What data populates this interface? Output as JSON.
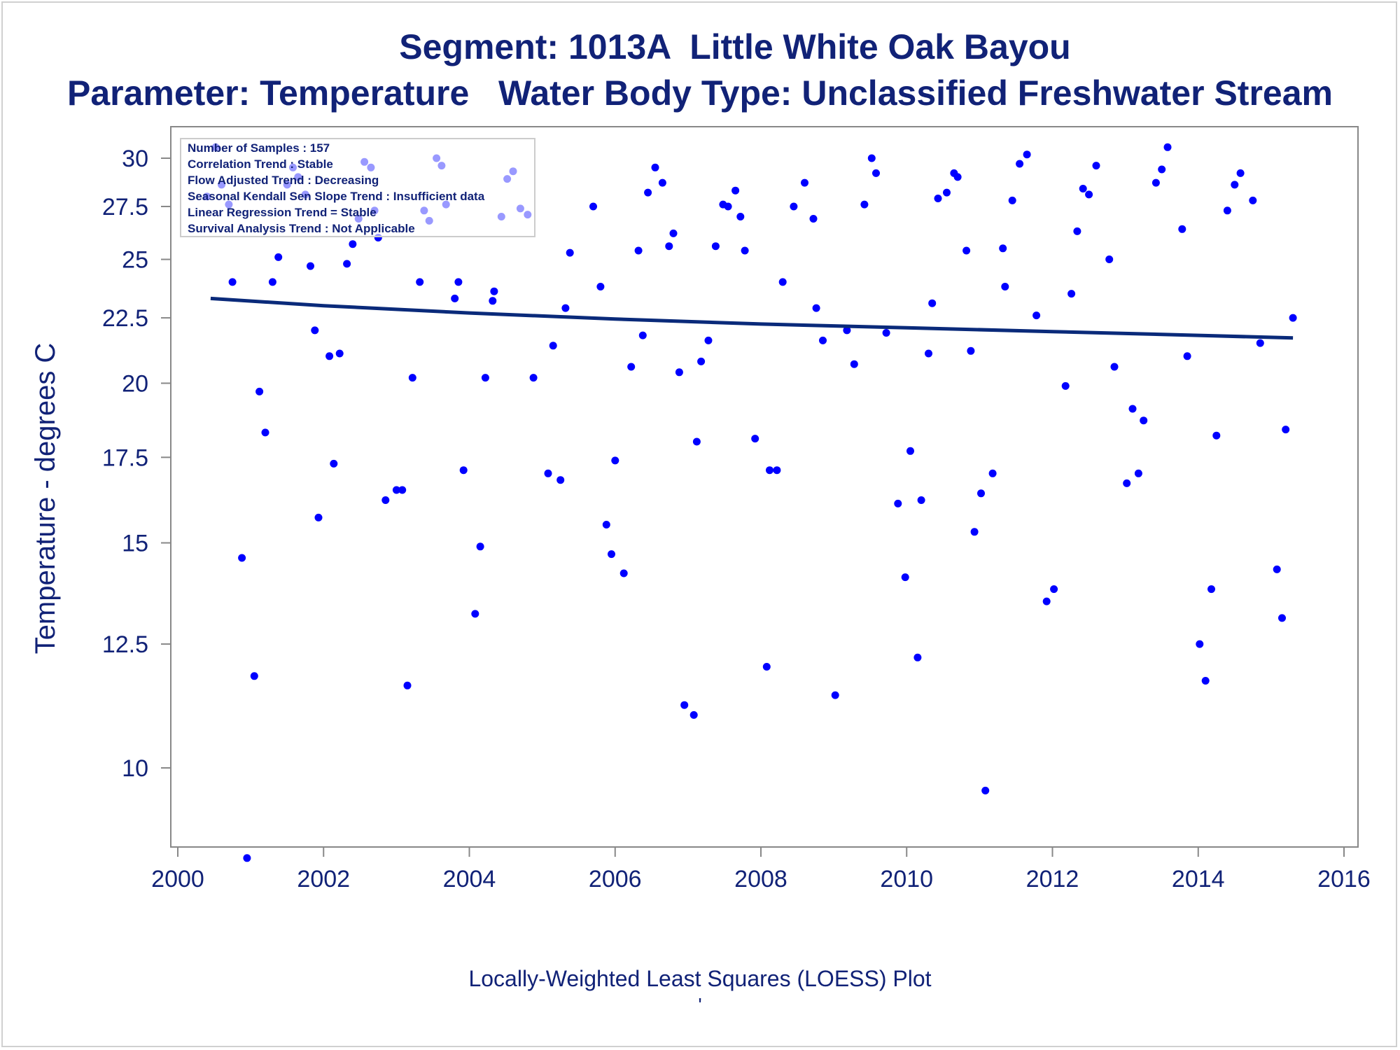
{
  "titles": {
    "line1": "Segment: 1013A  Little White Oak Bayou",
    "line2": "Parameter: Temperature   Water Body Type: Unclassified Freshwater Stream"
  },
  "footer": {
    "line1": "Locally-Weighted Least Squares (LOESS) Plot",
    "line2": "'"
  },
  "colors": {
    "title": "#112277",
    "points": "#0000ff",
    "trend_line": "#0a2a7a",
    "axis": "#888888"
  },
  "chart_data": {
    "type": "scatter",
    "title": "Segment: 1013A  Little White Oak Bayou",
    "subtitle": "Parameter: Temperature   Water Body Type: Unclassified Freshwater Stream",
    "xlabel": "",
    "ylabel": "Temperature - degrees C",
    "xlim": [
      2000,
      2016
    ],
    "ylim": [
      8.5,
      31
    ],
    "y_scale": "log",
    "x_ticks": [
      2000,
      2002,
      2004,
      2006,
      2008,
      2010,
      2012,
      2014,
      2016
    ],
    "y_ticks": [
      10,
      12.5,
      15,
      17.5,
      20,
      22.5,
      25,
      27.5,
      30
    ],
    "y_tick_labels": [
      "10",
      "12.5",
      "15",
      "17.5",
      "20",
      "22.5",
      "25",
      "27.5",
      "30"
    ],
    "grid": false,
    "legend_position": "top-left",
    "annotations": [
      "Number of Samples : 157",
      "Correlation Trend : Stable",
      "Flow Adjusted Trend : Decreasing",
      "Seasonal Kendall Sen Slope Trend : Insufficient data",
      "Linear Regression Trend = Stable",
      "Survival Analysis Trend : Not Applicable"
    ],
    "series": [
      {
        "type": "scatter",
        "points": [
          [
            2000.4,
            28.0
          ],
          [
            2000.52,
            30.6
          ],
          [
            2000.6,
            28.6
          ],
          [
            2000.7,
            27.6
          ],
          [
            2000.75,
            24.0
          ],
          [
            2000.88,
            14.6
          ],
          [
            2000.95,
            8.5
          ],
          [
            2001.05,
            11.8
          ],
          [
            2001.12,
            19.7
          ],
          [
            2001.2,
            18.3
          ],
          [
            2001.3,
            24.0
          ],
          [
            2001.38,
            25.1
          ],
          [
            2001.5,
            28.6
          ],
          [
            2001.58,
            29.5
          ],
          [
            2001.65,
            29.0
          ],
          [
            2001.75,
            28.1
          ],
          [
            2001.82,
            24.7
          ],
          [
            2001.88,
            22.0
          ],
          [
            2001.93,
            15.7
          ],
          [
            2002.08,
            21.0
          ],
          [
            2002.14,
            17.3
          ],
          [
            2002.22,
            21.1
          ],
          [
            2002.32,
            24.8
          ],
          [
            2002.4,
            25.7
          ],
          [
            2002.48,
            26.9
          ],
          [
            2002.56,
            29.8
          ],
          [
            2002.65,
            29.5
          ],
          [
            2002.7,
            27.3
          ],
          [
            2002.75,
            26.0
          ],
          [
            2002.85,
            16.2
          ],
          [
            2003.0,
            16.5
          ],
          [
            2003.08,
            16.5
          ],
          [
            2003.15,
            11.6
          ],
          [
            2003.22,
            20.2
          ],
          [
            2003.32,
            24.0
          ],
          [
            2003.38,
            27.3
          ],
          [
            2003.45,
            26.8
          ],
          [
            2003.55,
            30.0
          ],
          [
            2003.62,
            29.6
          ],
          [
            2003.68,
            27.6
          ],
          [
            2003.8,
            23.3
          ],
          [
            2003.85,
            24.0
          ],
          [
            2003.92,
            17.1
          ],
          [
            2004.08,
            13.2
          ],
          [
            2004.15,
            14.9
          ],
          [
            2004.22,
            20.2
          ],
          [
            2004.32,
            23.2
          ],
          [
            2004.34,
            23.6
          ],
          [
            2004.44,
            27.0
          ],
          [
            2004.52,
            28.9
          ],
          [
            2004.6,
            29.3
          ],
          [
            2004.7,
            27.4
          ],
          [
            2004.8,
            27.1
          ],
          [
            2004.88,
            20.2
          ],
          [
            2005.08,
            17.0
          ],
          [
            2005.15,
            21.4
          ],
          [
            2005.25,
            16.8
          ],
          [
            2005.32,
            22.9
          ],
          [
            2005.38,
            25.3
          ],
          [
            2005.7,
            27.5
          ],
          [
            2005.8,
            23.8
          ],
          [
            2005.88,
            15.5
          ],
          [
            2005.95,
            14.7
          ],
          [
            2006.0,
            17.4
          ],
          [
            2006.12,
            14.2
          ],
          [
            2006.22,
            20.6
          ],
          [
            2006.32,
            25.4
          ],
          [
            2006.38,
            21.8
          ],
          [
            2006.45,
            28.2
          ],
          [
            2006.55,
            29.5
          ],
          [
            2006.65,
            28.7
          ],
          [
            2006.74,
            25.6
          ],
          [
            2006.8,
            26.2
          ],
          [
            2006.88,
            20.4
          ],
          [
            2006.95,
            11.2
          ],
          [
            2007.08,
            11.0
          ],
          [
            2007.12,
            18.0
          ],
          [
            2007.18,
            20.8
          ],
          [
            2007.28,
            21.6
          ],
          [
            2007.38,
            25.6
          ],
          [
            2007.48,
            27.6
          ],
          [
            2007.55,
            27.5
          ],
          [
            2007.65,
            28.3
          ],
          [
            2007.72,
            27.0
          ],
          [
            2007.78,
            25.4
          ],
          [
            2007.92,
            18.1
          ],
          [
            2008.08,
            12.0
          ],
          [
            2008.12,
            17.1
          ],
          [
            2008.22,
            17.1
          ],
          [
            2008.3,
            24.0
          ],
          [
            2008.45,
            27.5
          ],
          [
            2008.6,
            28.7
          ],
          [
            2008.72,
            26.9
          ],
          [
            2008.76,
            22.9
          ],
          [
            2008.85,
            21.6
          ],
          [
            2009.02,
            11.4
          ],
          [
            2009.18,
            22.0
          ],
          [
            2009.28,
            20.7
          ],
          [
            2009.42,
            27.6
          ],
          [
            2009.52,
            30.0
          ],
          [
            2009.58,
            29.2
          ],
          [
            2009.72,
            21.9
          ],
          [
            2009.88,
            16.1
          ],
          [
            2009.98,
            14.1
          ],
          [
            2010.05,
            17.7
          ],
          [
            2010.15,
            12.2
          ],
          [
            2010.2,
            16.2
          ],
          [
            2010.3,
            21.1
          ],
          [
            2010.35,
            23.1
          ],
          [
            2010.43,
            27.9
          ],
          [
            2010.55,
            28.2
          ],
          [
            2010.65,
            29.2
          ],
          [
            2010.7,
            29.0
          ],
          [
            2010.82,
            25.4
          ],
          [
            2010.88,
            21.2
          ],
          [
            2010.93,
            15.3
          ],
          [
            2011.02,
            16.4
          ],
          [
            2011.08,
            9.6
          ],
          [
            2011.18,
            17.0
          ],
          [
            2011.32,
            25.5
          ],
          [
            2011.35,
            23.8
          ],
          [
            2011.45,
            27.8
          ],
          [
            2011.55,
            29.7
          ],
          [
            2011.65,
            30.2
          ],
          [
            2011.78,
            22.6
          ],
          [
            2011.92,
            13.5
          ],
          [
            2012.02,
            13.8
          ],
          [
            2012.18,
            19.9
          ],
          [
            2012.26,
            23.5
          ],
          [
            2012.34,
            26.3
          ],
          [
            2012.42,
            28.4
          ],
          [
            2012.5,
            28.1
          ],
          [
            2012.6,
            29.6
          ],
          [
            2012.78,
            25.0
          ],
          [
            2012.85,
            20.6
          ],
          [
            2013.02,
            16.7
          ],
          [
            2013.1,
            19.1
          ],
          [
            2013.18,
            17.0
          ],
          [
            2013.25,
            18.7
          ],
          [
            2013.42,
            28.7
          ],
          [
            2013.5,
            29.4
          ],
          [
            2013.58,
            30.6
          ],
          [
            2013.78,
            26.4
          ],
          [
            2013.85,
            21.0
          ],
          [
            2014.02,
            12.5
          ],
          [
            2014.1,
            11.7
          ],
          [
            2014.18,
            13.8
          ],
          [
            2014.25,
            18.2
          ],
          [
            2014.4,
            27.3
          ],
          [
            2014.5,
            28.6
          ],
          [
            2014.58,
            29.2
          ],
          [
            2014.75,
            27.8
          ],
          [
            2014.85,
            21.5
          ],
          [
            2015.08,
            14.3
          ],
          [
            2015.15,
            13.1
          ],
          [
            2015.2,
            18.4
          ],
          [
            2015.3,
            22.5
          ]
        ]
      },
      {
        "type": "line",
        "points": [
          [
            2000.45,
            23.3
          ],
          [
            2002.0,
            23.0
          ],
          [
            2004.0,
            22.7
          ],
          [
            2006.0,
            22.45
          ],
          [
            2008.0,
            22.25
          ],
          [
            2010.0,
            22.1
          ],
          [
            2012.0,
            21.95
          ],
          [
            2014.0,
            21.8
          ],
          [
            2015.3,
            21.7
          ]
        ]
      }
    ]
  }
}
